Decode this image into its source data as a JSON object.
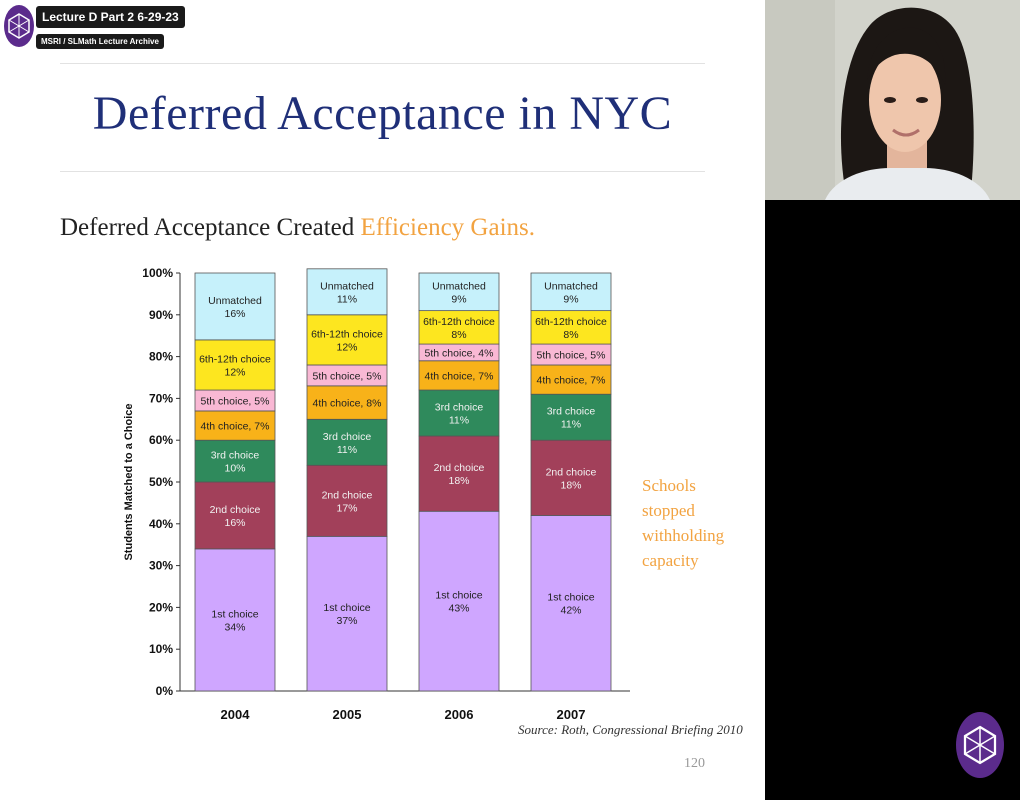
{
  "overlay": {
    "title": "Lecture D Part 2 6-29-23",
    "subtitle": "MSRI / SLMath Lecture Archive",
    "logo_icon": "slmath-logo-icon"
  },
  "slide": {
    "title": "Deferred Acceptance in NYC",
    "subtitle_plain": "Deferred Acceptance Created ",
    "subtitle_highlight": "Efficiency Gains.",
    "note_lines": [
      "Schools",
      "stopped",
      "withholding",
      "capacity"
    ],
    "source": "Source: Roth, Congressional Briefing 2010",
    "page_number": "120",
    "accent_color": "#f2a341",
    "title_color": "#1f2f78"
  },
  "chart_data": {
    "type": "bar",
    "stacked": true,
    "categories": [
      "2004",
      "2005",
      "2006",
      "2007"
    ],
    "ylabel": "Students Matched to a Choice",
    "ylim": [
      0,
      100
    ],
    "y_ticks": [
      "0%",
      "10%",
      "20%",
      "30%",
      "40%",
      "50%",
      "60%",
      "70%",
      "80%",
      "90%",
      "100%"
    ],
    "series": [
      {
        "name": "1st choice",
        "color": "#cfa6ff",
        "values": [
          34,
          37,
          43,
          42
        ],
        "labels": [
          [
            "1st choice",
            "34%"
          ],
          [
            "1st choice",
            "37%"
          ],
          [
            "1st choice",
            "43%"
          ],
          [
            "1st choice",
            "42%"
          ]
        ]
      },
      {
        "name": "2nd choice",
        "color": "#a2405a",
        "values": [
          16,
          17,
          18,
          18
        ],
        "labels": [
          [
            "2nd choice",
            "16%"
          ],
          [
            "2nd choice",
            "17%"
          ],
          [
            "2nd choice",
            "18%"
          ],
          [
            "2nd choice",
            "18%"
          ]
        ]
      },
      {
        "name": "3rd choice",
        "color": "#2f8a5c",
        "values": [
          10,
          11,
          11,
          11
        ],
        "labels": [
          [
            "3rd choice",
            "10%"
          ],
          [
            "3rd choice",
            "11%"
          ],
          [
            "3rd choice",
            "11%"
          ],
          [
            "3rd choice",
            "11%"
          ]
        ]
      },
      {
        "name": "4th choice",
        "color": "#f8b219",
        "values": [
          7,
          8,
          7,
          7
        ],
        "labels": [
          [
            "4th choice, 7%"
          ],
          [
            "4th choice, 8%"
          ],
          [
            "4th choice, 7%"
          ],
          [
            "4th choice, 7%"
          ]
        ]
      },
      {
        "name": "5th choice",
        "color": "#f9b8d4",
        "values": [
          5,
          5,
          4,
          5
        ],
        "labels": [
          [
            "5th choice, 5%"
          ],
          [
            "5th choice, 5%"
          ],
          [
            "5th choice, 4%"
          ],
          [
            "5th choice, 5%"
          ]
        ]
      },
      {
        "name": "6th-12th choice",
        "color": "#fde61f",
        "values": [
          12,
          12,
          8,
          8
        ],
        "labels": [
          [
            "6th-12th choice",
            "12%"
          ],
          [
            "6th-12th choice",
            "12%"
          ],
          [
            "6th-12th choice",
            "8%"
          ],
          [
            "6th-12th choice",
            "8%"
          ]
        ]
      },
      {
        "name": "Unmatched",
        "color": "#c6f1fb",
        "values": [
          16,
          11,
          9,
          9
        ],
        "labels": [
          [
            "Unmatched",
            "16%"
          ],
          [
            "Unmatched",
            "11%"
          ],
          [
            "Unmatched",
            "9%"
          ],
          [
            "Unmatched",
            "9%"
          ]
        ]
      }
    ]
  },
  "webcam": {
    "background_color": "#cfd0c8"
  }
}
